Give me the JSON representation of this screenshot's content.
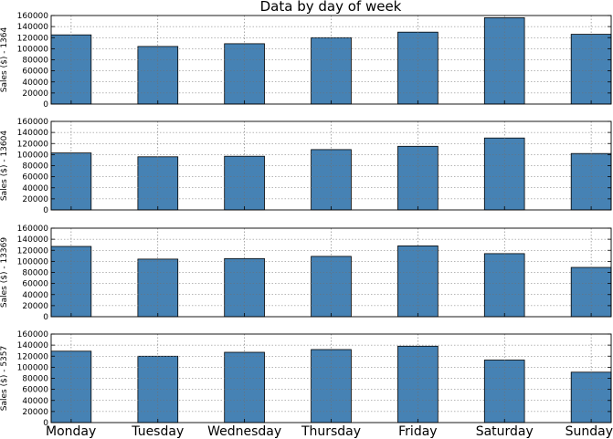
{
  "chart_data": {
    "type": "bar",
    "title": "Data by day of week",
    "categories": [
      "Monday",
      "Tuesday",
      "Wednesday",
      "Thursday",
      "Friday",
      "Saturday",
      "Sunday"
    ],
    "ylim": [
      0,
      160000
    ],
    "yticks": [
      0,
      20000,
      40000,
      60000,
      80000,
      100000,
      120000,
      140000,
      160000
    ],
    "grid": true,
    "bar_color": "#4682b4",
    "panels": [
      {
        "ylabel": "Sales ($) - 1364",
        "values": [
          125000,
          104000,
          109000,
          120000,
          130000,
          156000,
          126000
        ]
      },
      {
        "ylabel": "Sales ($) - 13604",
        "values": [
          103000,
          96000,
          97000,
          109000,
          115000,
          130000,
          102000
        ]
      },
      {
        "ylabel": "Sales ($) - 13369",
        "values": [
          127000,
          104000,
          105000,
          109000,
          128000,
          114000,
          89000
        ]
      },
      {
        "ylabel": "Sales ($) - 5357",
        "values": [
          129000,
          120000,
          127000,
          132000,
          138000,
          113000,
          91000
        ]
      }
    ]
  }
}
